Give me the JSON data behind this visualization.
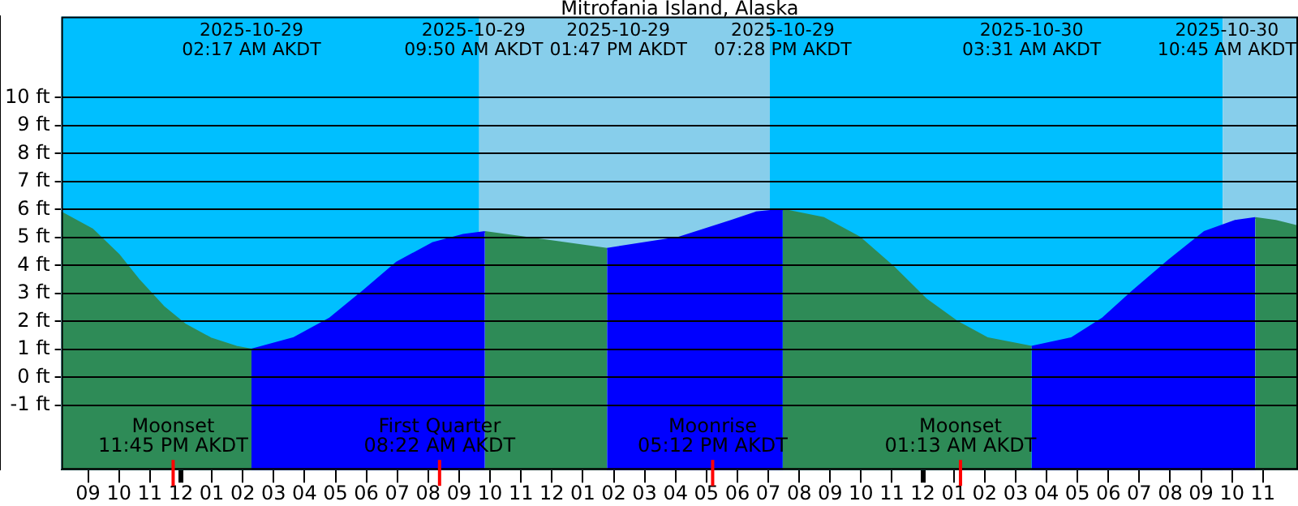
{
  "chart_data": {
    "type": "area",
    "title": "Mitrofania Island, Alaska",
    "xlim": [
      "2025-10-28T20:08",
      "2025-10-30T12:08"
    ],
    "xticks": [
      {
        "value": "2025-10-28T21:00",
        "label": "09"
      },
      {
        "value": "2025-10-28T22:00",
        "label": "10"
      },
      {
        "value": "2025-10-28T23:00",
        "label": "11"
      },
      {
        "value": "2025-10-29T00:00",
        "label": "12"
      },
      {
        "value": "2025-10-29T01:00",
        "label": "01"
      },
      {
        "value": "2025-10-29T02:00",
        "label": "02"
      },
      {
        "value": "2025-10-29T03:00",
        "label": "03"
      },
      {
        "value": "2025-10-29T04:00",
        "label": "04"
      },
      {
        "value": "2025-10-29T05:00",
        "label": "05"
      },
      {
        "value": "2025-10-29T06:00",
        "label": "06"
      },
      {
        "value": "2025-10-29T07:00",
        "label": "07"
      },
      {
        "value": "2025-10-29T08:00",
        "label": "08"
      },
      {
        "value": "2025-10-29T09:00",
        "label": "09"
      },
      {
        "value": "2025-10-29T10:00",
        "label": "10"
      },
      {
        "value": "2025-10-29T11:00",
        "label": "11"
      },
      {
        "value": "2025-10-29T12:00",
        "label": "12"
      },
      {
        "value": "2025-10-29T13:00",
        "label": "01"
      },
      {
        "value": "2025-10-29T14:00",
        "label": "02"
      },
      {
        "value": "2025-10-29T15:00",
        "label": "03"
      },
      {
        "value": "2025-10-29T16:00",
        "label": "04"
      },
      {
        "value": "2025-10-29T17:00",
        "label": "05"
      },
      {
        "value": "2025-10-29T18:00",
        "label": "06"
      },
      {
        "value": "2025-10-29T19:00",
        "label": "07"
      },
      {
        "value": "2025-10-29T20:00",
        "label": "08"
      },
      {
        "value": "2025-10-29T21:00",
        "label": "09"
      },
      {
        "value": "2025-10-29T22:00",
        "label": "10"
      },
      {
        "value": "2025-10-29T23:00",
        "label": "11"
      },
      {
        "value": "2025-10-30T00:00",
        "label": "12"
      },
      {
        "value": "2025-10-30T01:00",
        "label": "01"
      },
      {
        "value": "2025-10-30T02:00",
        "label": "02"
      },
      {
        "value": "2025-10-30T03:00",
        "label": "03"
      },
      {
        "value": "2025-10-30T04:00",
        "label": "04"
      },
      {
        "value": "2025-10-30T05:00",
        "label": "05"
      },
      {
        "value": "2025-10-30T06:00",
        "label": "06"
      },
      {
        "value": "2025-10-30T07:00",
        "label": "07"
      },
      {
        "value": "2025-10-30T08:00",
        "label": "08"
      },
      {
        "value": "2025-10-30T09:00",
        "label": "09"
      },
      {
        "value": "2025-10-30T10:00",
        "label": "10"
      },
      {
        "value": "2025-10-30T11:00",
        "label": "11"
      }
    ],
    "ylim": [
      -3.3,
      12.9
    ],
    "yticks": [
      {
        "value": -1,
        "label": "-1 ft"
      },
      {
        "value": 0,
        "label": "0 ft"
      },
      {
        "value": 1,
        "label": "1 ft"
      },
      {
        "value": 2,
        "label": "2 ft"
      },
      {
        "value": 3,
        "label": "3 ft"
      },
      {
        "value": 4,
        "label": "4 ft"
      },
      {
        "value": 5,
        "label": "5 ft"
      },
      {
        "value": 6,
        "label": "6 ft"
      },
      {
        "value": 7,
        "label": "7 ft"
      },
      {
        "value": 8,
        "label": "8 ft"
      },
      {
        "value": 9,
        "label": "9 ft"
      },
      {
        "value": 10,
        "label": "10 ft"
      }
    ],
    "grid": "y",
    "legend": false,
    "series": [
      {
        "color": "#2e8b57",
        "x": [
          "2025-10-28T20:08",
          "2025-10-28T21:08",
          "2025-10-28T21:59",
          "2025-10-28T22:38",
          "2025-10-28T23:28",
          "2025-10-29T00:08",
          "2025-10-29T00:58",
          "2025-10-29T01:48",
          "2025-10-29T02:17"
        ],
        "values": [
          5.9,
          5.3,
          4.4,
          3.5,
          2.5,
          1.9,
          1.4,
          1.1,
          1.0
        ]
      },
      {
        "color": "#0000ff",
        "x": [
          "2025-10-29T02:17",
          "2025-10-29T03:38",
          "2025-10-29T04:48",
          "2025-10-29T05:48",
          "2025-10-29T06:58",
          "2025-10-29T08:08",
          "2025-10-29T09:08",
          "2025-10-29T09:50"
        ],
        "values": [
          1.0,
          1.4,
          2.1,
          3.0,
          4.1,
          4.8,
          5.1,
          5.2
        ]
      },
      {
        "color": "#2e8b57",
        "x": [
          "2025-10-29T09:50",
          "2025-10-29T11:48",
          "2025-10-29T13:47"
        ],
        "values": [
          5.2,
          4.9,
          4.6
        ]
      },
      {
        "color": "#0000ff",
        "x": [
          "2025-10-29T13:47",
          "2025-10-29T16:06",
          "2025-10-29T17:48",
          "2025-10-29T18:36",
          "2025-10-29T19:28"
        ],
        "values": [
          4.6,
          5.0,
          5.6,
          5.9,
          6.0
        ]
      },
      {
        "color": "#2e8b57",
        "x": [
          "2025-10-29T19:28",
          "2025-10-29T20:48",
          "2025-10-29T21:58",
          "2025-10-29T23:06",
          "2025-10-30T00:06",
          "2025-10-30T01:06",
          "2025-10-30T02:06",
          "2025-10-30T03:31"
        ],
        "values": [
          6.0,
          5.7,
          5.0,
          3.9,
          2.8,
          2.0,
          1.4,
          1.1
        ]
      },
      {
        "color": "#0000ff",
        "x": [
          "2025-10-30T03:31",
          "2025-10-30T04:48",
          "2025-10-30T05:48",
          "2025-10-30T06:48",
          "2025-10-30T07:58",
          "2025-10-30T09:06",
          "2025-10-30T10:06",
          "2025-10-30T10:45"
        ],
        "values": [
          1.1,
          1.4,
          2.1,
          3.1,
          4.2,
          5.2,
          5.6,
          5.7
        ]
      },
      {
        "color": "#2e8b57",
        "x": [
          "2025-10-30T10:45",
          "2025-10-30T11:25",
          "2025-10-30T12:08"
        ],
        "values": [
          5.7,
          5.6,
          5.4
        ]
      }
    ],
    "annotations": [
      "2025-10-29\n02:17 AM AKDT",
      "2025-10-29\n09:50 AM AKDT",
      "2025-10-29\n01:47 PM AKDT",
      "2025-10-29\n07:28 PM AKDT",
      "2025-10-30\n03:31 AM AKDT",
      "2025-10-30\n10:45 AM AKDT"
    ],
    "bands": [
      {
        "axis": "x",
        "from": "2025-10-28T20:08",
        "to": "2025-10-29T09:39",
        "color": "#00bfff"
      },
      {
        "axis": "x",
        "from": "2025-10-29T09:39",
        "to": "2025-10-29T19:03",
        "color": "#87ceeb"
      },
      {
        "axis": "x",
        "from": "2025-10-29T19:03",
        "to": "2025-10-30T09:42",
        "color": "#00bfff"
      },
      {
        "axis": "x",
        "from": "2025-10-30T09:42",
        "to": "2025-10-30T12:08",
        "color": "#87ceeb"
      }
    ],
    "ref_lines": [
      {
        "axis": "x",
        "value": "2025-10-28T23:45",
        "label": "Moonset\n11:45 PM AKDT",
        "color": "#ff0000"
      },
      {
        "axis": "x",
        "value": "2025-10-29T08:22",
        "label": "First Quarter\n08:22 AM AKDT",
        "color": "#ff0000"
      },
      {
        "axis": "x",
        "value": "2025-10-29T17:12",
        "label": "Moonrise\n05:12 PM AKDT",
        "color": "#ff0000"
      },
      {
        "axis": "x",
        "value": "2025-10-30T01:13",
        "label": "Moonset\n01:13 AM AKDT",
        "color": "#ff0000"
      }
    ]
  }
}
